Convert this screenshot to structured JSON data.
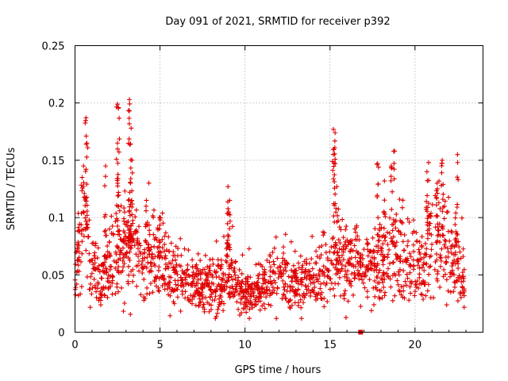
{
  "chart_data": {
    "type": "scatter",
    "title": "Day 091 of 2021, SRMTID for receiver p392",
    "xlabel": "GPS time / hours",
    "ylabel": "SRMTID / TECUs",
    "xlim": [
      0,
      24
    ],
    "ylim": [
      0,
      0.25
    ],
    "xticks": [
      0,
      5,
      10,
      15,
      20
    ],
    "xtick_labels": [
      "0",
      "5",
      "10",
      "15",
      "20"
    ],
    "yticks": [
      0,
      0.05,
      0.1,
      0.15,
      0.2,
      0.25
    ],
    "ytick_labels": [
      "0",
      "0.05",
      "0.1",
      "0.15",
      "0.2",
      "0.25"
    ],
    "grid": true,
    "marker": "plus",
    "color": "#e00000",
    "extra_marker": {
      "x": 16.8,
      "y": 0.0,
      "shape": "square"
    },
    "profile": [
      {
        "x": 0.0,
        "y": 0.04
      },
      {
        "x": 0.3,
        "y": 0.08
      },
      {
        "x": 0.6,
        "y": 0.09
      },
      {
        "x": 1.0,
        "y": 0.055
      },
      {
        "x": 1.5,
        "y": 0.04
      },
      {
        "x": 2.0,
        "y": 0.06
      },
      {
        "x": 2.5,
        "y": 0.07
      },
      {
        "x": 3.0,
        "y": 0.075
      },
      {
        "x": 3.5,
        "y": 0.07
      },
      {
        "x": 4.0,
        "y": 0.06
      },
      {
        "x": 4.5,
        "y": 0.06
      },
      {
        "x": 5.0,
        "y": 0.062
      },
      {
        "x": 5.5,
        "y": 0.055
      },
      {
        "x": 6.0,
        "y": 0.05
      },
      {
        "x": 6.5,
        "y": 0.045
      },
      {
        "x": 7.0,
        "y": 0.04
      },
      {
        "x": 7.5,
        "y": 0.04
      },
      {
        "x": 8.0,
        "y": 0.042
      },
      {
        "x": 8.5,
        "y": 0.045
      },
      {
        "x": 9.0,
        "y": 0.055
      },
      {
        "x": 9.5,
        "y": 0.04
      },
      {
        "x": 10.0,
        "y": 0.035
      },
      {
        "x": 10.5,
        "y": 0.035
      },
      {
        "x": 11.0,
        "y": 0.04
      },
      {
        "x": 11.5,
        "y": 0.045
      },
      {
        "x": 12.0,
        "y": 0.05
      },
      {
        "x": 12.5,
        "y": 0.042
      },
      {
        "x": 13.0,
        "y": 0.042
      },
      {
        "x": 13.5,
        "y": 0.045
      },
      {
        "x": 14.0,
        "y": 0.048
      },
      {
        "x": 14.5,
        "y": 0.045
      },
      {
        "x": 15.0,
        "y": 0.055
      },
      {
        "x": 15.5,
        "y": 0.06
      },
      {
        "x": 16.0,
        "y": 0.06
      },
      {
        "x": 16.5,
        "y": 0.06
      },
      {
        "x": 17.0,
        "y": 0.055
      },
      {
        "x": 17.5,
        "y": 0.055
      },
      {
        "x": 18.0,
        "y": 0.06
      },
      {
        "x": 18.5,
        "y": 0.065
      },
      {
        "x": 19.0,
        "y": 0.07
      },
      {
        "x": 19.5,
        "y": 0.06
      },
      {
        "x": 20.0,
        "y": 0.06
      },
      {
        "x": 20.5,
        "y": 0.055
      },
      {
        "x": 21.0,
        "y": 0.075
      },
      {
        "x": 21.5,
        "y": 0.08
      },
      {
        "x": 22.0,
        "y": 0.065
      },
      {
        "x": 22.5,
        "y": 0.055
      },
      {
        "x": 22.9,
        "y": 0.05
      }
    ],
    "peaks": [
      {
        "x": 0.5,
        "y": 0.145
      },
      {
        "x": 0.65,
        "y": 0.187
      },
      {
        "x": 0.7,
        "y": 0.165
      },
      {
        "x": 1.8,
        "y": 0.145
      },
      {
        "x": 2.5,
        "y": 0.199
      },
      {
        "x": 2.55,
        "y": 0.196
      },
      {
        "x": 2.5,
        "y": 0.165
      },
      {
        "x": 3.2,
        "y": 0.203
      },
      {
        "x": 3.2,
        "y": 0.193
      },
      {
        "x": 3.3,
        "y": 0.178
      },
      {
        "x": 3.35,
        "y": 0.15
      },
      {
        "x": 4.2,
        "y": 0.115
      },
      {
        "x": 5.0,
        "y": 0.1
      },
      {
        "x": 9.0,
        "y": 0.127
      },
      {
        "x": 9.1,
        "y": 0.115
      },
      {
        "x": 15.2,
        "y": 0.177
      },
      {
        "x": 15.3,
        "y": 0.174
      },
      {
        "x": 15.2,
        "y": 0.155
      },
      {
        "x": 15.4,
        "y": 0.127
      },
      {
        "x": 17.8,
        "y": 0.147
      },
      {
        "x": 18.2,
        "y": 0.132
      },
      {
        "x": 18.8,
        "y": 0.158
      },
      {
        "x": 18.6,
        "y": 0.145
      },
      {
        "x": 20.8,
        "y": 0.148
      },
      {
        "x": 20.7,
        "y": 0.14
      },
      {
        "x": 21.3,
        "y": 0.13
      },
      {
        "x": 21.6,
        "y": 0.15
      },
      {
        "x": 22.5,
        "y": 0.155
      },
      {
        "x": 22.4,
        "y": 0.104
      }
    ],
    "n_points": 1700
  }
}
